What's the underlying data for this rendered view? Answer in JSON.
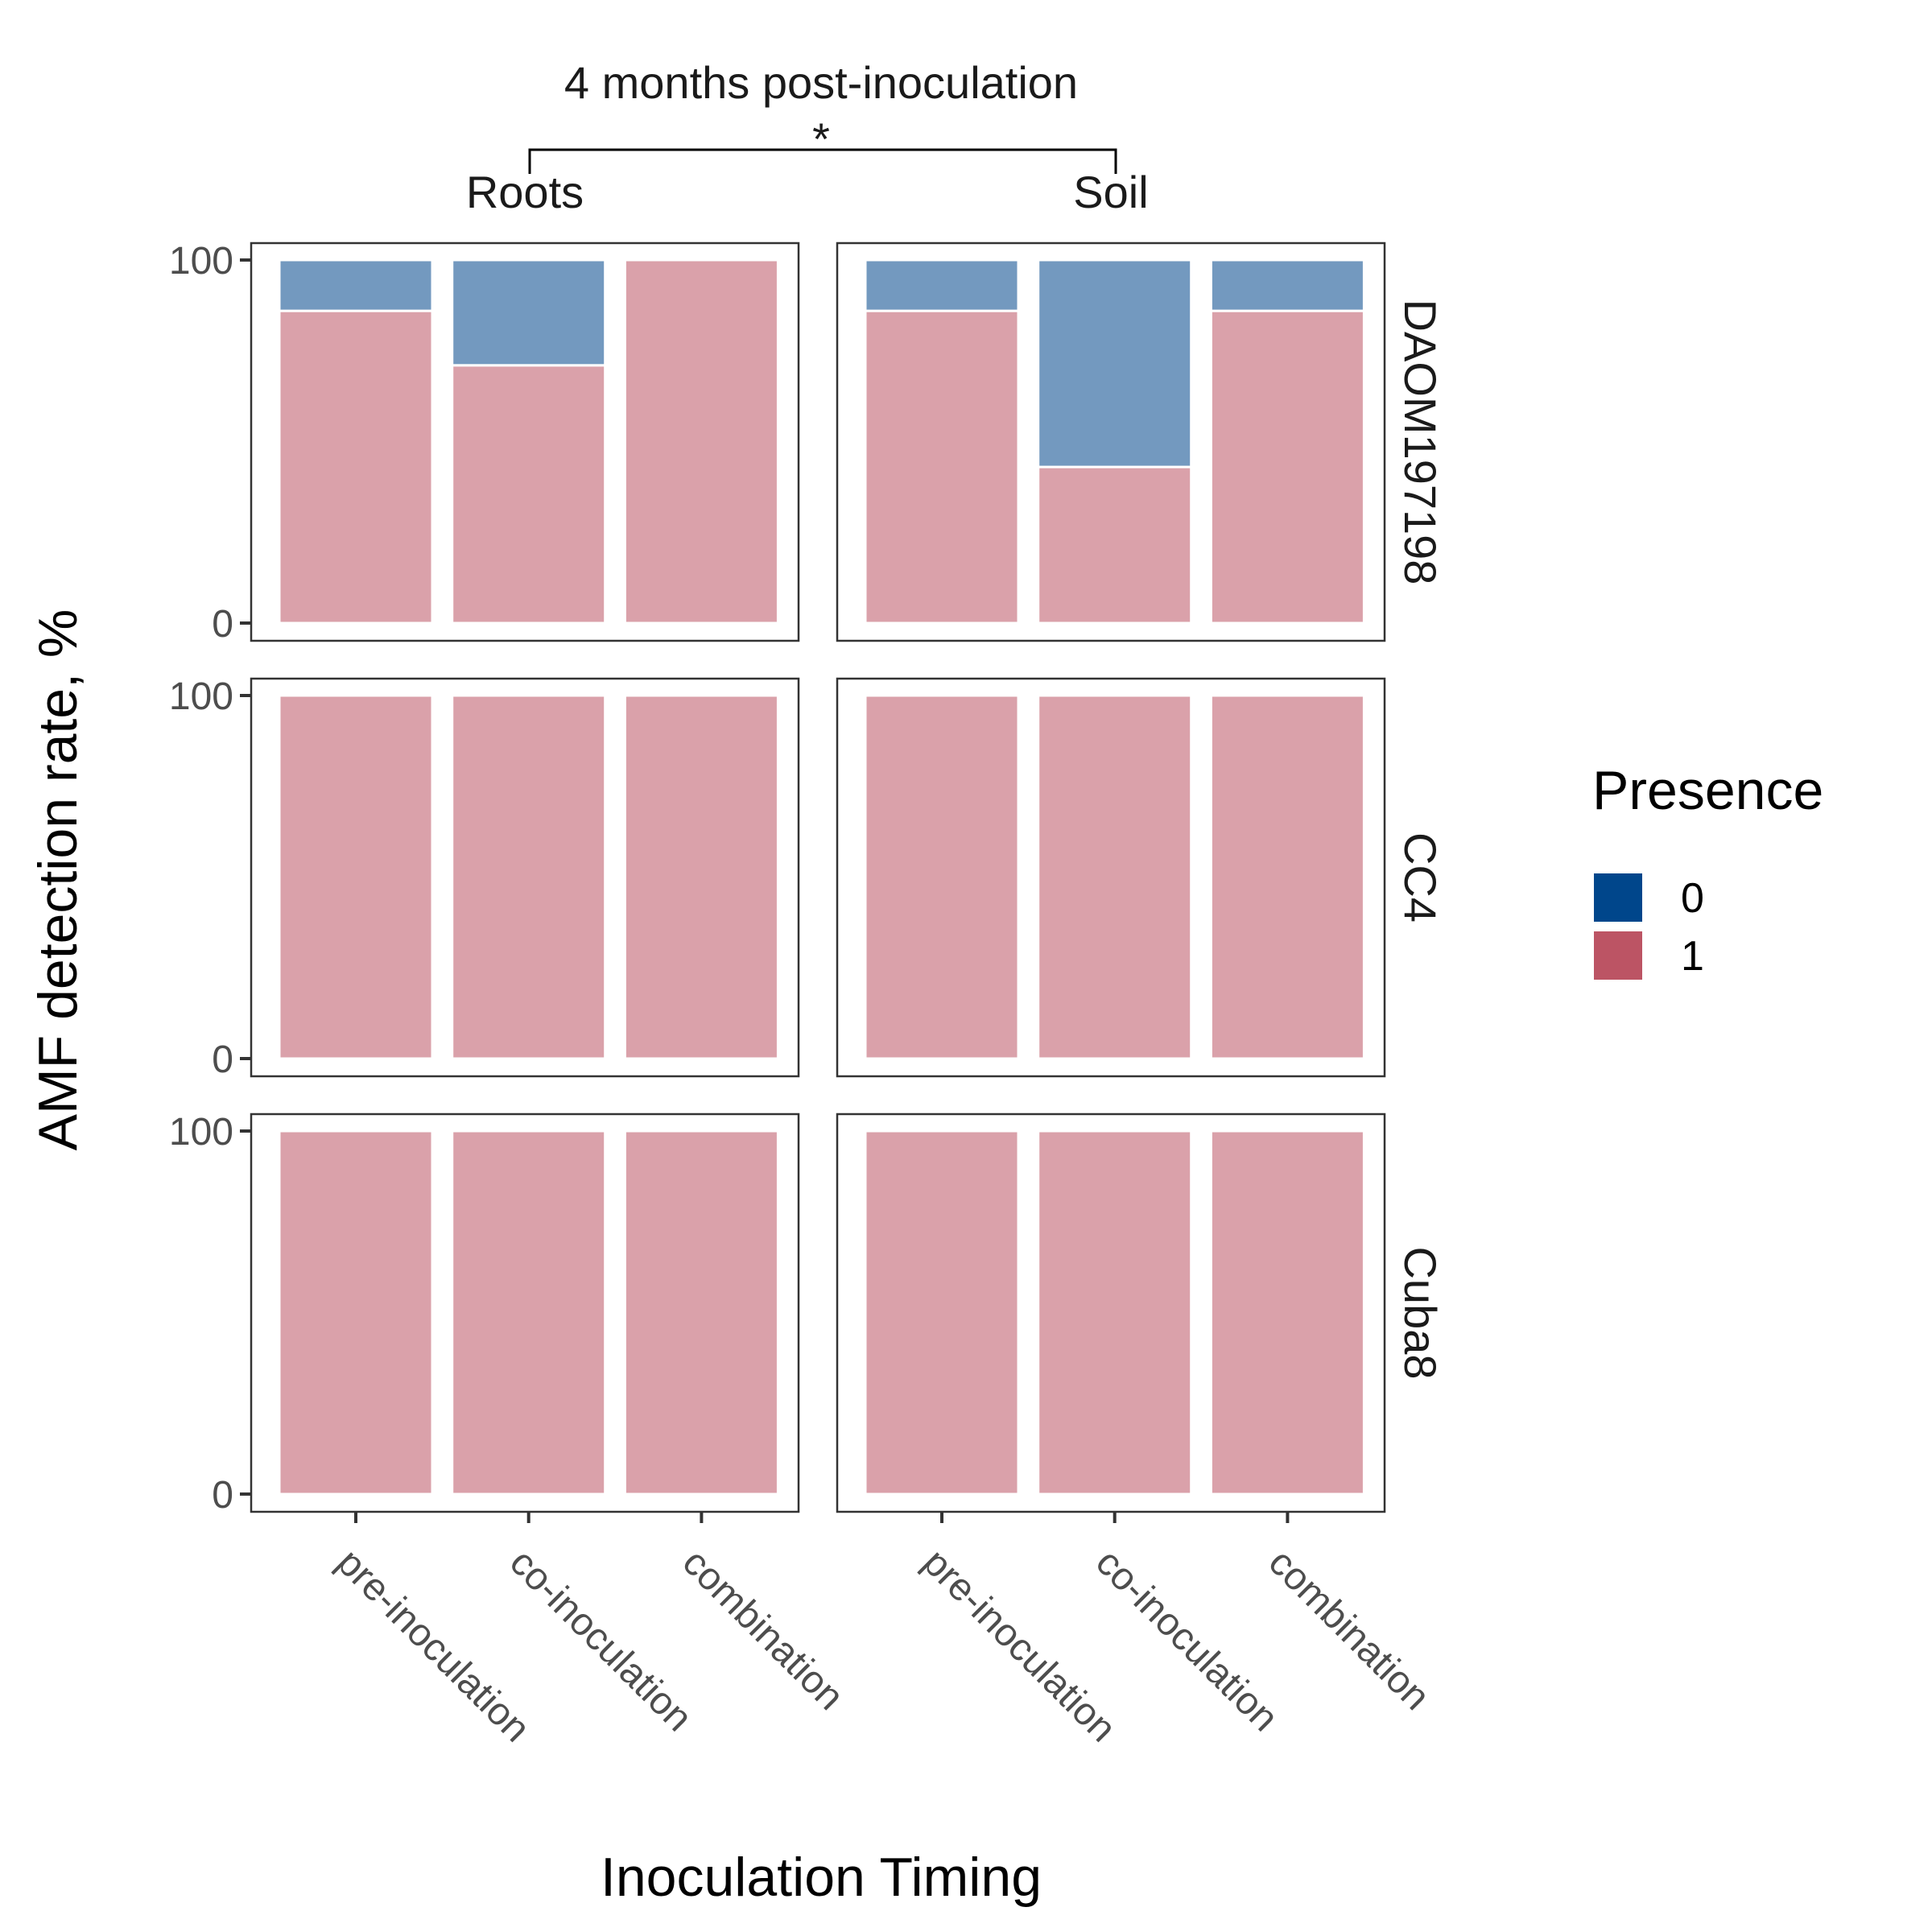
{
  "chart_data": {
    "type": "bar",
    "subtype": "stacked-100-percent-faceted",
    "title": "4 months post-inoculation",
    "significance_marker": "*",
    "xlabel": "Inoculation Timing",
    "ylabel": "AMF detection rate, %",
    "ylim": [
      0,
      100
    ],
    "yticks": [
      "0",
      "100"
    ],
    "categories": [
      "pre-inoculation",
      "co-inoculation",
      "combination"
    ],
    "facet_columns": [
      "Roots",
      "Soil"
    ],
    "facet_rows": [
      "DAOM197198",
      "CC4",
      "Cuba8"
    ],
    "legend": {
      "title": "Presence",
      "position": "right",
      "entries": [
        {
          "label": "0",
          "color": "#00468B"
        },
        {
          "label": "1",
          "color": "#BC5464"
        }
      ]
    },
    "bar_fill_alpha": 0.55,
    "grid": false,
    "panels": [
      {
        "row": "DAOM197198",
        "column": "Roots",
        "series": [
          {
            "name": "0",
            "values": [
              14,
              29,
              0
            ]
          },
          {
            "name": "1",
            "values": [
              86,
              71,
              100
            ]
          }
        ]
      },
      {
        "row": "DAOM197198",
        "column": "Soil",
        "series": [
          {
            "name": "0",
            "values": [
              14,
              57,
              14
            ]
          },
          {
            "name": "1",
            "values": [
              86,
              43,
              86
            ]
          }
        ]
      },
      {
        "row": "CC4",
        "column": "Roots",
        "series": [
          {
            "name": "0",
            "values": [
              0,
              0,
              0
            ]
          },
          {
            "name": "1",
            "values": [
              100,
              100,
              100
            ]
          }
        ]
      },
      {
        "row": "CC4",
        "column": "Soil",
        "series": [
          {
            "name": "0",
            "values": [
              0,
              0,
              0
            ]
          },
          {
            "name": "1",
            "values": [
              100,
              100,
              100
            ]
          }
        ]
      },
      {
        "row": "Cuba8",
        "column": "Roots",
        "series": [
          {
            "name": "0",
            "values": [
              0,
              0,
              0
            ]
          },
          {
            "name": "1",
            "values": [
              100,
              100,
              100
            ]
          }
        ]
      },
      {
        "row": "Cuba8",
        "column": "Soil",
        "series": [
          {
            "name": "0",
            "values": [
              0,
              0,
              0
            ]
          },
          {
            "name": "1",
            "values": [
              100,
              100,
              100
            ]
          }
        ]
      }
    ]
  }
}
